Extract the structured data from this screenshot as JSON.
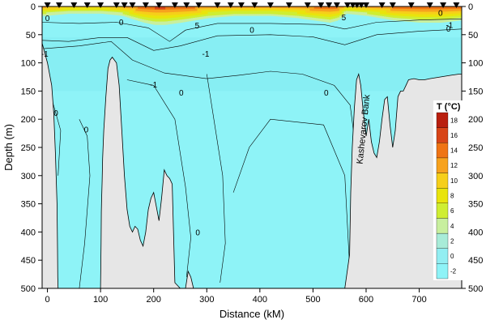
{
  "chart_data": {
    "type": "heatmap",
    "subtype": "ocean-temperature-depth-section",
    "xlabel": "Distance (kM)",
    "ylabel": "Depth (m)",
    "xlim": [
      -10,
      780
    ],
    "ylim": [
      500,
      0
    ],
    "x_ticks": [
      0,
      100,
      200,
      300,
      400,
      500,
      600,
      700
    ],
    "y_ticks": [
      0,
      50,
      100,
      150,
      200,
      250,
      300,
      350,
      400,
      450,
      500
    ],
    "legend": {
      "title": "T (°C)",
      "placement": "right",
      "levels": [
        -2,
        0,
        2,
        4,
        6,
        8,
        10,
        12,
        14,
        16,
        18
      ],
      "colors": [
        "#8ef3f7",
        "#92eef2",
        "#a8ecd8",
        "#c8ef9e",
        "#cfee32",
        "#e9e40c",
        "#f6cf1a",
        "#f7a21e",
        "#ef7414",
        "#d84518",
        "#b91f0f"
      ]
    },
    "station_markers_x": [
      0,
      22,
      50,
      75,
      100,
      130,
      145,
      160,
      185,
      210,
      240,
      262,
      285,
      320,
      345,
      365,
      390,
      420,
      455,
      490,
      515,
      530,
      545,
      565,
      575,
      583,
      591,
      600,
      630,
      650,
      685,
      720,
      745,
      770
    ],
    "surface_temperature": {
      "x": [
        -5,
        40,
        100,
        140,
        180,
        200,
        220,
        250,
        300,
        350,
        420,
        470,
        500,
        530,
        545,
        560,
        600,
        650,
        700,
        740,
        775
      ],
      "t_surface": [
        10,
        9,
        9,
        10,
        13,
        14,
        14,
        13,
        11,
        10,
        10,
        11,
        12,
        13,
        12,
        9,
        10,
        12,
        13,
        13,
        12
      ]
    },
    "contour_labels": [
      {
        "text": "0",
        "x": 0,
        "y": 20
      },
      {
        "text": "0",
        "x": 139,
        "y": 27
      },
      {
        "text": "0",
        "x": 385,
        "y": 41
      },
      {
        "text": "0",
        "x": 740,
        "y": 11
      },
      {
        "text": "0",
        "x": 755,
        "y": 39
      },
      {
        "text": "0",
        "x": 252,
        "y": 152
      },
      {
        "text": "0",
        "x": 525,
        "y": 152
      },
      {
        "text": "0",
        "x": 16,
        "y": 188
      },
      {
        "text": "0",
        "x": 73,
        "y": 218
      },
      {
        "text": "0",
        "x": 283,
        "y": 400
      },
      {
        "text": "-1",
        "x": -5,
        "y": 83
      },
      {
        "text": "-1",
        "x": 298,
        "y": 83
      },
      {
        "text": "-1",
        "x": 200,
        "y": 138
      },
      {
        "text": "-1",
        "x": 757,
        "y": 32
      },
      {
        "text": "5",
        "x": 282,
        "y": 33
      },
      {
        "text": "5",
        "x": 558,
        "y": 19
      }
    ],
    "annotations": [
      {
        "text": "Kashevarov Bank",
        "x": 600,
        "y": 235
      }
    ],
    "bathymetry": {
      "x": [
        -10,
        0,
        8,
        12,
        15,
        18,
        19,
        19.5,
        20,
        22,
        100,
        101,
        101.5,
        102,
        103,
        104,
        106,
        110,
        114,
        118,
        122,
        126,
        130,
        135,
        140,
        145,
        150,
        155,
        160,
        165,
        170,
        175,
        180,
        185,
        190,
        195,
        200,
        205,
        210,
        215,
        220,
        225,
        230,
        235,
        240,
        250,
        260,
        265,
        270,
        275,
        280,
        285,
        290,
        300,
        320,
        380,
        400,
        440,
        560,
        569,
        571,
        574,
        578,
        582,
        586,
        590,
        594,
        600,
        605,
        610,
        615,
        620,
        625,
        630,
        635,
        640,
        645,
        650,
        655,
        660,
        665,
        670,
        675,
        680,
        690,
        700,
        710,
        720,
        740,
        760,
        775,
        780
      ],
      "depth": [
        65,
        100,
        140,
        190,
        260,
        350,
        430,
        480,
        500,
        500,
        500,
        420,
        365,
        345,
        310,
        270,
        220,
        160,
        110,
        95,
        90,
        95,
        100,
        140,
        220,
        300,
        360,
        390,
        400,
        390,
        395,
        415,
        425,
        400,
        360,
        340,
        330,
        355,
        380,
        340,
        290,
        300,
        305,
        315,
        490,
        500,
        500,
        470,
        480,
        500,
        500,
        500,
        500,
        500,
        500,
        500,
        500,
        500,
        500,
        440,
        330,
        250,
        180,
        130,
        120,
        140,
        180,
        230,
        200,
        240,
        260,
        268,
        240,
        200,
        165,
        160,
        210,
        250,
        220,
        160,
        150,
        150,
        140,
        130,
        128,
        130,
        130,
        128,
        125,
        122,
        120,
        120
      ]
    }
  }
}
